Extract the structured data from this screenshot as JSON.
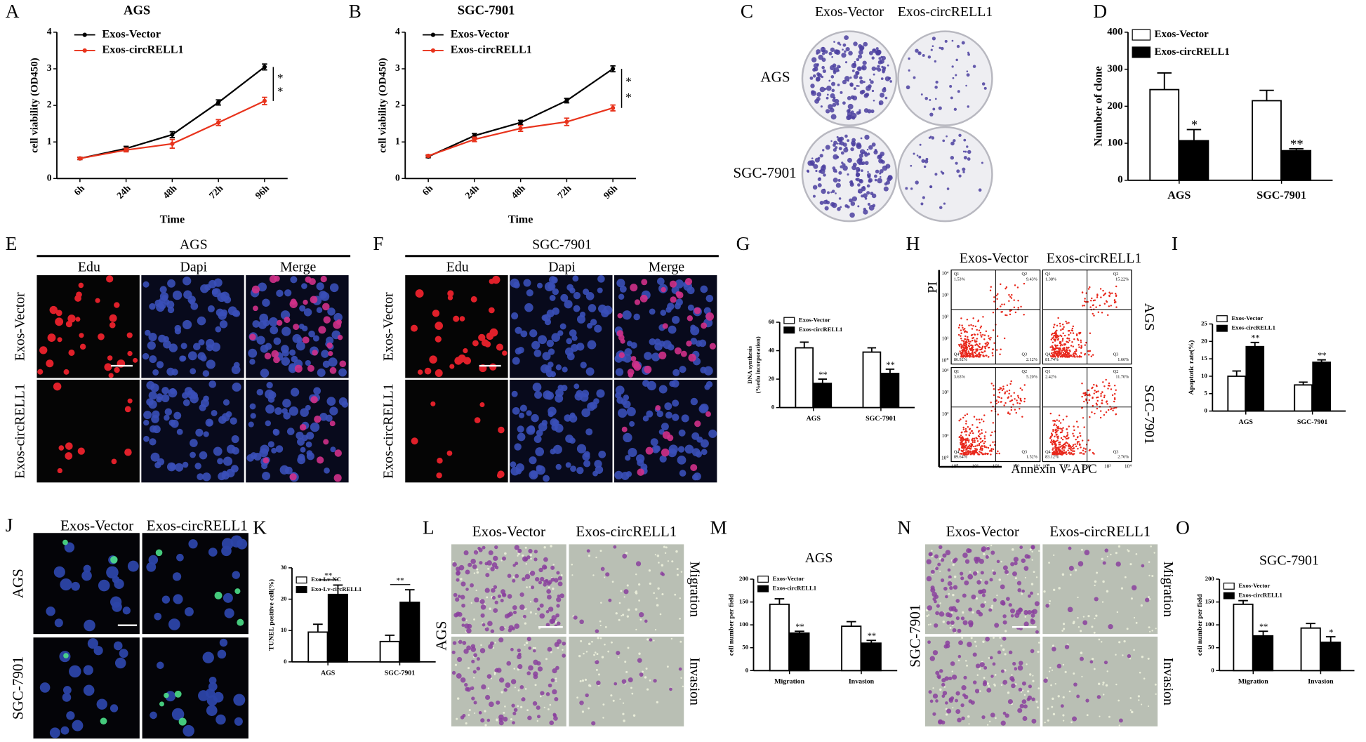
{
  "chart_data": [
    {
      "type": "line",
      "label": "A",
      "title": "AGS",
      "categories": [
        "6h",
        "24h",
        "48h",
        "72h",
        "96h"
      ],
      "xlabel": "Time",
      "ylabel": "cell viability (OD450)",
      "ylim": [
        0,
        4
      ],
      "yticks": [
        0,
        1,
        2,
        3,
        4
      ],
      "series": [
        {
          "name": "Exos-Vector",
          "color": "#000000",
          "values": [
            0.55,
            0.82,
            1.2,
            2.08,
            3.05
          ],
          "errors": [
            0.03,
            0.06,
            0.08,
            0.07,
            0.08
          ]
        },
        {
          "name": "Exos-circRELL1",
          "color": "#e8331c",
          "values": [
            0.55,
            0.78,
            0.95,
            1.53,
            2.12
          ],
          "errors": [
            0.03,
            0.05,
            0.12,
            0.08,
            0.1
          ]
        }
      ],
      "annotations": [
        "*",
        "*"
      ]
    },
    {
      "type": "line",
      "label": "B",
      "title": "SGC-7901",
      "categories": [
        "6h",
        "24h",
        "48h",
        "72h",
        "96h"
      ],
      "xlabel": "Time",
      "ylabel": "cell viability (OD450)",
      "ylim": [
        0,
        4
      ],
      "yticks": [
        0,
        1,
        2,
        3,
        4
      ],
      "series": [
        {
          "name": "Exos-Vector",
          "color": "#000000",
          "values": [
            0.6,
            1.17,
            1.53,
            2.13,
            3.0
          ],
          "errors": [
            0.03,
            0.06,
            0.06,
            0.06,
            0.08
          ]
        },
        {
          "name": "Exos-circRELL1",
          "color": "#e8331c",
          "values": [
            0.62,
            1.07,
            1.37,
            1.55,
            1.93
          ],
          "errors": [
            0.03,
            0.06,
            0.08,
            0.1,
            0.08
          ]
        }
      ],
      "annotations": [
        "*",
        "*"
      ]
    },
    {
      "type": "bar",
      "label": "D",
      "ylabel": "Number of clone",
      "categories": [
        "AGS",
        "SGC-7901"
      ],
      "ylim": [
        0,
        400
      ],
      "yticks": [
        0,
        100,
        200,
        300,
        400
      ],
      "series": [
        {
          "name": "Exos-Vector",
          "color": "#ffffff",
          "values": [
            245,
            215
          ],
          "errors": [
            45,
            28
          ]
        },
        {
          "name": "Exos-circRELL1",
          "color": "#000000",
          "values": [
            107,
            80
          ],
          "errors": [
            30,
            5
          ]
        }
      ],
      "annotations": [
        "*",
        "**"
      ]
    },
    {
      "type": "bar",
      "label": "G",
      "ylabel": [
        "DNA synthesis",
        "(%edu incorporation)"
      ],
      "categories": [
        "AGS",
        "SGC-7901"
      ],
      "ylim": [
        0,
        60
      ],
      "yticks": [
        0,
        20,
        40,
        60
      ],
      "series": [
        {
          "name": "Exos-Vector",
          "color": "#ffffff",
          "values": [
            42,
            39
          ],
          "errors": [
            4,
            3
          ]
        },
        {
          "name": "Exos-circRELL1",
          "color": "#000000",
          "values": [
            17,
            24
          ],
          "errors": [
            3,
            3
          ]
        }
      ],
      "annotations": [
        "**",
        "**"
      ]
    },
    {
      "type": "bar",
      "label": "I",
      "ylabel": "Apoptotic rate(%)",
      "categories": [
        "AGS",
        "SGC-7901"
      ],
      "ylim": [
        0,
        25
      ],
      "yticks": [
        0,
        5,
        10,
        15,
        20,
        25
      ],
      "series": [
        {
          "name": "Exos-Vector",
          "color": "#ffffff",
          "values": [
            10,
            7.5
          ],
          "errors": [
            1.5,
            0.8
          ]
        },
        {
          "name": "Exos-circRELL1",
          "color": "#000000",
          "values": [
            18.5,
            14
          ],
          "errors": [
            1.2,
            0.7
          ]
        }
      ],
      "annotations": [
        "**",
        "**"
      ]
    },
    {
      "type": "bar",
      "label": "K",
      "ylabel": "TUNEL positive cell(%)",
      "categories": [
        "AGS",
        "SGC-7901"
      ],
      "ylim": [
        0,
        30
      ],
      "yticks": [
        0,
        10,
        20,
        30
      ],
      "series": [
        {
          "name": "Exo-Lv-NC",
          "color": "#ffffff",
          "values": [
            9.5,
            6.5
          ],
          "errors": [
            2.5,
            2
          ]
        },
        {
          "name": "Exo-Lv-circRELL1",
          "color": "#000000",
          "values": [
            21.5,
            19
          ],
          "errors": [
            3,
            4
          ]
        }
      ],
      "annotations": [
        "**",
        "**"
      ]
    },
    {
      "type": "bar",
      "label": "M",
      "title": "AGS",
      "ylabel": "cell number per field",
      "categories": [
        "Migration",
        "Invasion"
      ],
      "ylim": [
        0,
        200
      ],
      "yticks": [
        0,
        50,
        100,
        150,
        200
      ],
      "series": [
        {
          "name": "Exos-Vector",
          "color": "#ffffff",
          "values": [
            145,
            97
          ],
          "errors": [
            12,
            10
          ]
        },
        {
          "name": "Exos-circRELL1",
          "color": "#000000",
          "values": [
            82,
            60
          ],
          "errors": [
            4,
            6
          ]
        }
      ],
      "annotations": [
        "**",
        "**"
      ]
    },
    {
      "type": "bar",
      "label": "O",
      "title": "SGC-7901",
      "ylabel": "cell number per field",
      "categories": [
        "Migration",
        "Invasion"
      ],
      "ylim": [
        0,
        200
      ],
      "yticks": [
        0,
        50,
        100,
        150,
        200
      ],
      "series": [
        {
          "name": "Exos-Vector",
          "color": "#ffffff",
          "values": [
            145,
            93
          ],
          "errors": [
            8,
            10
          ]
        },
        {
          "name": "Exos-circRELL1",
          "color": "#000000",
          "values": [
            76,
            62
          ],
          "errors": [
            10,
            12
          ]
        }
      ],
      "annotations": [
        "**",
        "*"
      ]
    }
  ],
  "images": {
    "C": {
      "label": "C",
      "columns": [
        "Exos-Vector",
        "Exos-circRELL1"
      ],
      "rows": [
        "AGS",
        "SGC-7901"
      ]
    },
    "E": {
      "label": "E",
      "title": "AGS",
      "columns": [
        "Edu",
        "Dapi",
        "Merge"
      ],
      "rows": [
        "Exos-Vector",
        "Exos-circRELL1"
      ]
    },
    "F": {
      "label": "F",
      "title": "SGC-7901",
      "columns": [
        "Edu",
        "Dapi",
        "Merge"
      ],
      "rows": [
        "Exos-Vector",
        "Exos-circRELL1"
      ]
    },
    "H": {
      "label": "H",
      "columns": [
        "Exos-Vector",
        "Exos-circRELL1"
      ],
      "rows": [
        "AGS",
        "SGC-7901"
      ],
      "y_label": "PI",
      "x_label": "Annexin V-APC",
      "axis_ticks": [
        "10⁰",
        "10¹",
        "10²",
        "10³",
        "10⁴"
      ],
      "plots": [
        [
          [
            "Q1",
            "1.53%"
          ],
          [
            "Q2",
            "9.43%"
          ],
          [
            "Q3",
            "2.12%"
          ],
          [
            "Q4",
            "86.92%"
          ]
        ],
        [
          [
            "Q1",
            "1.38%"
          ],
          [
            "Q2",
            "15.22%"
          ],
          [
            "Q3",
            "1.66%"
          ],
          [
            "Q4",
            "81.74%"
          ]
        ],
        [
          [
            "Q1",
            "3.63%"
          ],
          [
            "Q2",
            "5.20%"
          ],
          [
            "Q3",
            "1.52%"
          ],
          [
            "Q4",
            "89.64%"
          ]
        ],
        [
          [
            "Q1",
            "2.42%"
          ],
          [
            "Q2",
            "11.70%"
          ],
          [
            "Q3",
            "2.76%"
          ],
          [
            "Q4",
            "83.12%"
          ]
        ]
      ]
    },
    "J": {
      "label": "J",
      "columns": [
        "Exos-Vector",
        "Exos-circRELL1"
      ],
      "rows": [
        "AGS",
        "SGC-7901"
      ]
    },
    "L": {
      "label": "L",
      "columns": [
        "Exos-Vector",
        "Exos-circRELL1"
      ],
      "row": "AGS",
      "sides": [
        "Migration",
        "Invasion"
      ]
    },
    "N": {
      "label": "N",
      "columns": [
        "Exos-Vector",
        "Exos-circRELL1"
      ],
      "row": "SGC-7901",
      "sides": [
        "Migration",
        "Invasion"
      ]
    }
  }
}
